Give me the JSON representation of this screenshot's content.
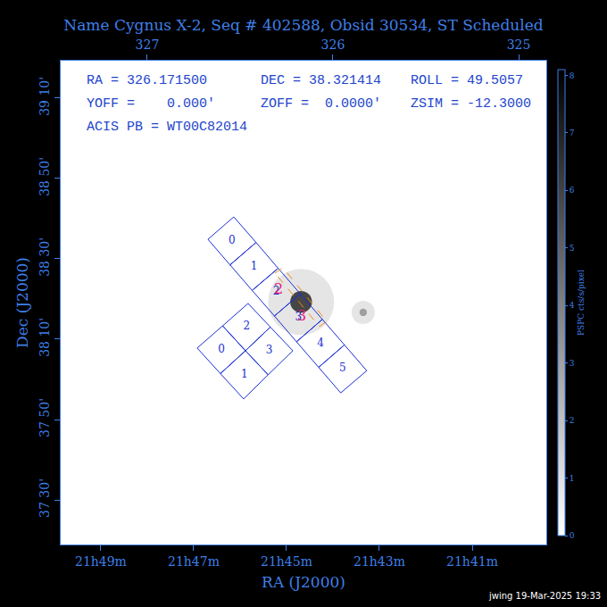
{
  "chart_data": {
    "type": "sky_map",
    "title": "Name Cygnus X-2, Seq # 402588, Obsid 30534, ST Scheduled",
    "x_label": "RA (J2000)",
    "y_label": "Dec (J2000)",
    "xlim": [
      327.466,
      324.851
    ],
    "xticks": [
      {
        "value": 327.25,
        "label": "21h49m"
      },
      {
        "value": 326.75,
        "label": "21h47m"
      },
      {
        "value": 326.25,
        "label": "21h45m"
      },
      {
        "value": 325.75,
        "label": "21h43m"
      },
      {
        "value": 325.25,
        "label": "21h41m"
      }
    ],
    "x2ticks": [
      327,
      326,
      325
    ],
    "ylim": [
      37.315,
      39.322
    ],
    "yticks": [
      {
        "value": 39.1667,
        "label": "39 10'"
      },
      {
        "value": 38.8333,
        "label": "38 50'"
      },
      {
        "value": 38.5,
        "label": "38 30'"
      },
      {
        "value": 38.1667,
        "label": "38 10'"
      },
      {
        "value": 37.8333,
        "label": "37 50'"
      },
      {
        "value": 37.5,
        "label": "37 30'"
      }
    ],
    "info_rows": [
      [
        "RA = 326.171500",
        "DEC = 38.321414",
        "ROLL = 49.5057"
      ],
      [
        "YOFF =    0.000'",
        "ZOFF =  0.0000'",
        "ZSIM = -12.3000"
      ],
      [
        "ACIS PB = WT00C82014"
      ]
    ],
    "footer": "jwing 19-Mar-2025 19:33",
    "sources": {
      "ra": [
        326.1715,
        325.837
      ],
      "dec": [
        38.3214,
        38.278
      ],
      "values": [
        8,
        4
      ]
    },
    "colorbar": {
      "title": "PSPC cts/s/pixel",
      "range": [
        0,
        8.1
      ],
      "ticks": [
        0,
        1,
        2,
        3,
        4,
        5,
        6,
        7,
        8
      ]
    },
    "chip_color": "#1a2fd0",
    "chips": [
      {
        "label": "0",
        "corners": [
          [
            326.534,
            38.674
          ],
          [
            326.414,
            38.568
          ],
          [
            326.554,
            38.475
          ],
          [
            326.673,
            38.581
          ]
        ]
      },
      {
        "label": "1",
        "corners": [
          [
            326.414,
            38.568
          ],
          [
            326.295,
            38.461
          ],
          [
            326.435,
            38.369
          ],
          [
            326.554,
            38.475
          ]
        ]
      },
      {
        "label": "2",
        "corners": [
          [
            326.295,
            38.461
          ],
          [
            326.176,
            38.355
          ],
          [
            326.315,
            38.263
          ],
          [
            326.435,
            38.369
          ]
        ]
      },
      {
        "label": "3",
        "corners": [
          [
            326.176,
            38.355
          ],
          [
            326.057,
            38.249
          ],
          [
            326.196,
            38.156
          ],
          [
            326.315,
            38.263
          ]
        ]
      },
      {
        "label": "4",
        "corners": [
          [
            326.057,
            38.249
          ],
          [
            325.938,
            38.143
          ],
          [
            326.077,
            38.05
          ],
          [
            326.196,
            38.156
          ]
        ]
      },
      {
        "label": "5",
        "corners": [
          [
            325.938,
            38.143
          ],
          [
            325.818,
            38.036
          ],
          [
            325.958,
            37.944
          ],
          [
            326.077,
            38.05
          ]
        ]
      },
      {
        "label": "2",
        "corners": [
          [
            326.457,
            38.315
          ],
          [
            326.337,
            38.217
          ],
          [
            326.471,
            38.119
          ],
          [
            326.594,
            38.222
          ]
        ]
      },
      {
        "label": "3",
        "corners": [
          [
            326.337,
            38.217
          ],
          [
            326.216,
            38.119
          ],
          [
            326.349,
            38.019
          ],
          [
            326.471,
            38.119
          ]
        ]
      },
      {
        "label": "1",
        "corners": [
          [
            326.471,
            38.119
          ],
          [
            326.349,
            38.019
          ],
          [
            326.481,
            37.919
          ],
          [
            326.606,
            38.024
          ]
        ]
      },
      {
        "label": "0",
        "corners": [
          [
            326.594,
            38.222
          ],
          [
            326.471,
            38.119
          ],
          [
            326.606,
            38.024
          ],
          [
            326.731,
            38.13
          ]
        ]
      }
    ],
    "node_labels": {
      "texts": [
        "2",
        "3"
      ],
      "ra": [
        326.293,
        326.168
      ],
      "dec": [
        38.37,
        38.259
      ],
      "color": "#e8207a"
    },
    "readout_box": {
      "corners": [
        [
          326.3125,
          38.441
        ],
        [
          326.269,
          38.463
        ],
        [
          326.034,
          38.241
        ],
        [
          326.072,
          38.219
        ]
      ],
      "color": "#f08a1c",
      "line_style": "dash"
    }
  }
}
